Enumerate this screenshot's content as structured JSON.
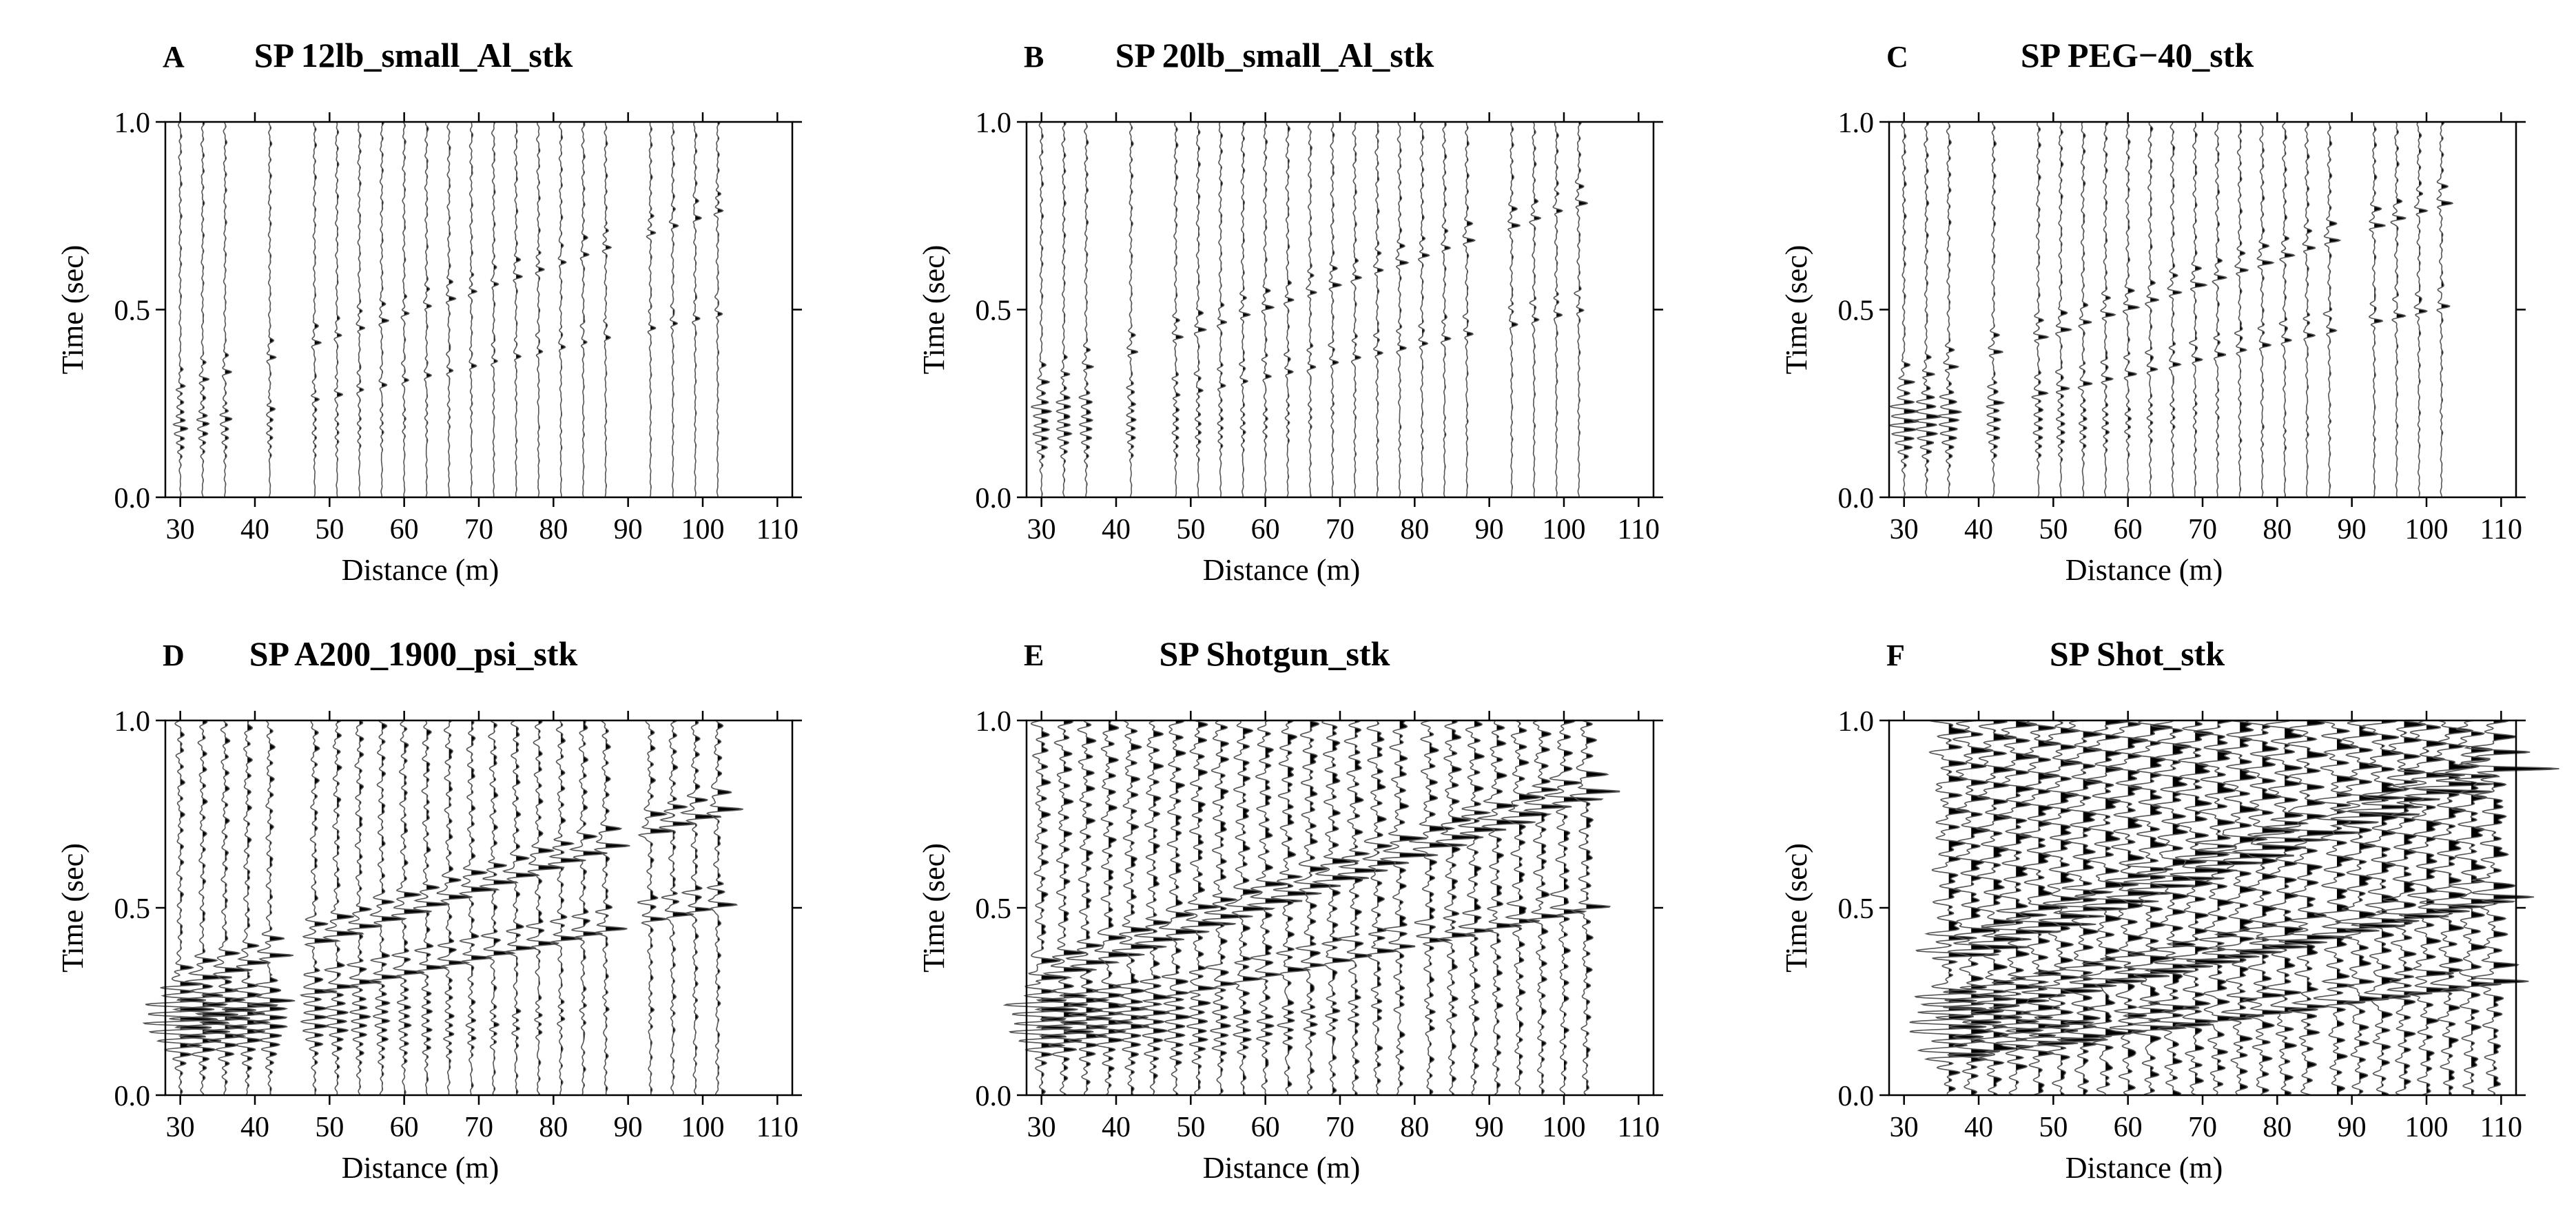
{
  "chart_data": [
    {
      "type": "seismogram",
      "letter": "A",
      "title": "SP 12lb_small_Al_stk",
      "xlabel": "Distance (m)",
      "ylabel": "Time (sec)",
      "xlim": [
        28,
        112
      ],
      "ylim": [
        0.0,
        1.0
      ],
      "xticks": [
        30,
        40,
        50,
        60,
        70,
        80,
        90,
        100,
        110
      ],
      "yticks": [
        0.0,
        0.5,
        1.0
      ],
      "ytick_labels": [
        "0.0",
        "0.5",
        "1.0"
      ],
      "trace_offsets": [
        30,
        33,
        36,
        42,
        48,
        51,
        54,
        57,
        60,
        63,
        66,
        69,
        72,
        75,
        78,
        81,
        84,
        87,
        93,
        96,
        99,
        102
      ],
      "events": [
        {
          "t0": 0.1,
          "slope": 0.0065,
          "amp": 0.45
        },
        {
          "t0": 0.06,
          "slope": 0.0042,
          "amp": 0.35
        }
      ],
      "gain": 1.0,
      "noise": 0.15,
      "near_energy": 0.5
    },
    {
      "type": "seismogram",
      "letter": "B",
      "title": "SP 20lb_small_Al_stk",
      "xlabel": "Distance (m)",
      "ylabel": "Time (sec)",
      "xlim": [
        28,
        112
      ],
      "ylim": [
        0.0,
        1.0
      ],
      "xticks": [
        30,
        40,
        50,
        60,
        70,
        80,
        90,
        100,
        110
      ],
      "yticks": [
        0.0,
        0.5,
        1.0
      ],
      "ytick_labels": [
        "0.0",
        "0.5",
        "1.0"
      ],
      "trace_offsets": [
        30,
        33,
        36,
        42,
        48,
        51,
        54,
        57,
        60,
        63,
        66,
        69,
        72,
        75,
        78,
        81,
        84,
        87,
        93,
        96,
        99,
        102
      ],
      "events": [
        {
          "t0": 0.11,
          "slope": 0.0066,
          "amp": 0.5
        },
        {
          "t0": 0.07,
          "slope": 0.0042,
          "amp": 0.4
        }
      ],
      "gain": 1.15,
      "noise": 0.15,
      "near_energy": 0.7
    },
    {
      "type": "seismogram",
      "letter": "C",
      "title": "SP PEG−40_stk",
      "xlabel": "Distance (m)",
      "ylabel": "Time (sec)",
      "xlim": [
        28,
        112
      ],
      "ylim": [
        0.0,
        1.0
      ],
      "xticks": [
        30,
        40,
        50,
        60,
        70,
        80,
        90,
        100,
        110
      ],
      "yticks": [
        0.0,
        0.5,
        1.0
      ],
      "ytick_labels": [
        "0.0",
        "0.5",
        "1.0"
      ],
      "trace_offsets": [
        30,
        33,
        36,
        42,
        48,
        51,
        54,
        57,
        60,
        63,
        66,
        69,
        72,
        75,
        78,
        81,
        84,
        87,
        93,
        96,
        99,
        102
      ],
      "events": [
        {
          "t0": 0.11,
          "slope": 0.0066,
          "amp": 0.6
        },
        {
          "t0": 0.07,
          "slope": 0.0043,
          "amp": 0.5
        }
      ],
      "gain": 1.3,
      "noise": 0.15,
      "near_energy": 0.9
    },
    {
      "type": "seismogram",
      "letter": "D",
      "title": "SP A200_1900_psi_stk",
      "xlabel": "Distance (m)",
      "ylabel": "Time (sec)",
      "xlim": [
        28,
        112
      ],
      "ylim": [
        0.0,
        1.0
      ],
      "xticks": [
        30,
        40,
        50,
        60,
        70,
        80,
        90,
        100,
        110
      ],
      "yticks": [
        0.0,
        0.5,
        1.0
      ],
      "ytick_labels": [
        "0.0",
        "0.5",
        "1.0"
      ],
      "trace_offsets": [
        30,
        33,
        36,
        39,
        42,
        48,
        51,
        54,
        57,
        60,
        63,
        66,
        69,
        72,
        75,
        78,
        81,
        84,
        87,
        93,
        96,
        99,
        102
      ],
      "events": [
        {
          "t0": 0.1,
          "slope": 0.0065,
          "amp": 1.0
        },
        {
          "t0": 0.07,
          "slope": 0.0043,
          "amp": 0.8
        }
      ],
      "gain": 2.0,
      "noise": 0.2,
      "near_energy": 1.5
    },
    {
      "type": "seismogram",
      "letter": "E",
      "title": "SP Shotgun_stk",
      "xlabel": "Distance (m)",
      "ylabel": "Time (sec)",
      "xlim": [
        28,
        112
      ],
      "ylim": [
        0.0,
        1.0
      ],
      "xticks": [
        30,
        40,
        50,
        60,
        70,
        80,
        90,
        100,
        110
      ],
      "yticks": [
        0.0,
        0.5,
        1.0
      ],
      "ytick_labels": [
        "0.0",
        "0.5",
        "1.0"
      ],
      "trace_offsets": [
        30,
        33,
        36,
        39,
        42,
        45,
        48,
        51,
        54,
        57,
        60,
        63,
        66,
        69,
        72,
        75,
        78,
        82,
        85,
        88,
        91,
        94,
        97,
        100,
        103
      ],
      "events": [
        {
          "t0": 0.11,
          "slope": 0.0068,
          "amp": 1.2
        },
        {
          "t0": 0.07,
          "slope": 0.0042,
          "amp": 0.7
        }
      ],
      "gain": 2.3,
      "noise": 0.35,
      "near_energy": 1.3
    },
    {
      "type": "seismogram",
      "letter": "F",
      "title": "SP Shot_stk",
      "xlabel": "Distance (m)",
      "ylabel": "Time (sec)",
      "xlim": [
        28,
        112
      ],
      "ylim": [
        0.0,
        1.0
      ],
      "xticks": [
        30,
        40,
        50,
        60,
        70,
        80,
        90,
        100,
        110
      ],
      "yticks": [
        0.0,
        0.5,
        1.0
      ],
      "ytick_labels": [
        "0.0",
        "0.5",
        "1.0"
      ],
      "trace_offsets": [
        36,
        39,
        42,
        45,
        48,
        51,
        54,
        57,
        60,
        63,
        66,
        69,
        72,
        75,
        78,
        81,
        84,
        88,
        91,
        94,
        97,
        100,
        103,
        106,
        109
      ],
      "events": [
        {
          "t0": 0.13,
          "slope": 0.0068,
          "amp": 1.3
        },
        {
          "t0": 0.06,
          "slope": 0.0043,
          "amp": 1.1
        },
        {
          "t0": 0.01,
          "slope": 0.0027,
          "amp": 0.8
        }
      ],
      "gain": 3.0,
      "noise": 0.6,
      "near_energy": 1.6
    }
  ]
}
